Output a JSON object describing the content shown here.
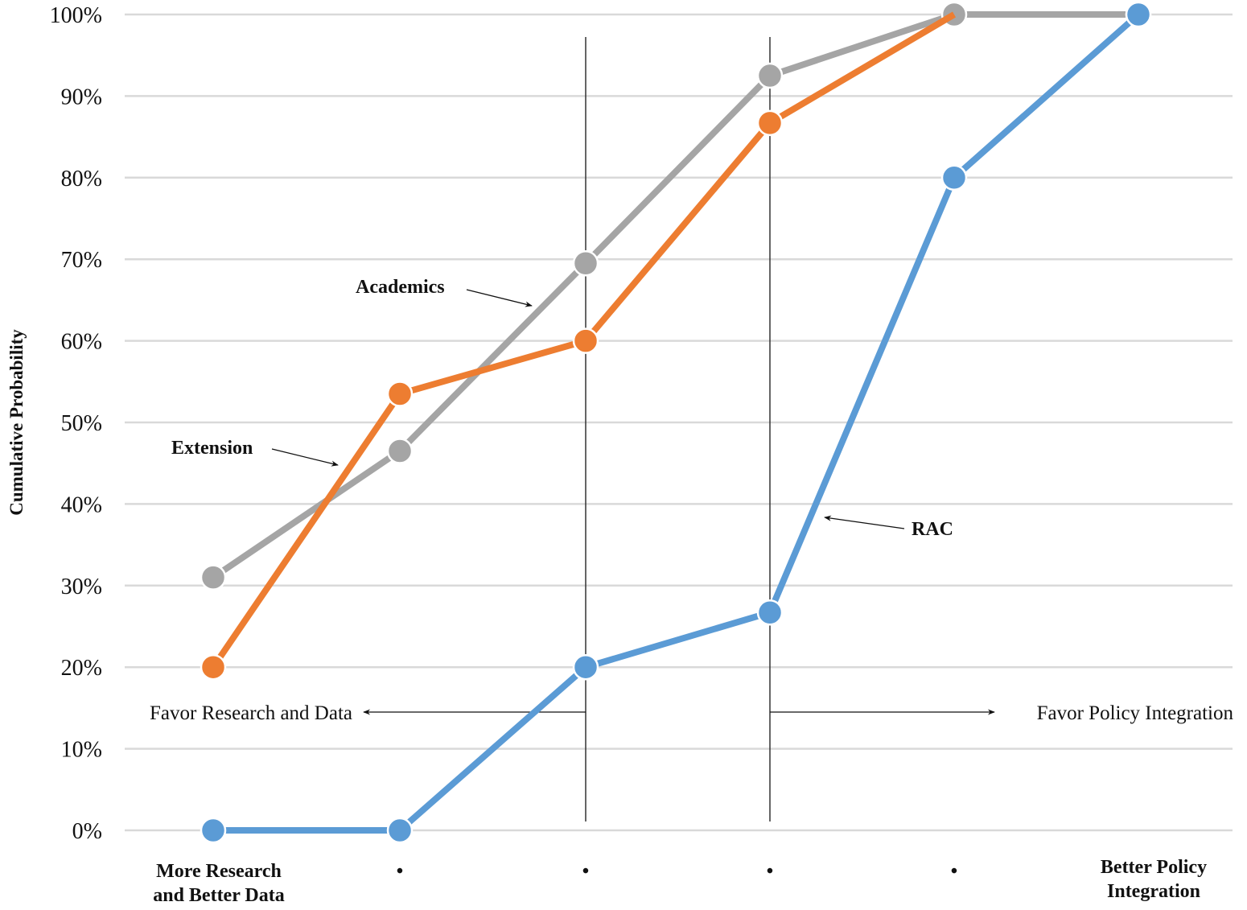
{
  "chart_data": {
    "type": "line",
    "title": "",
    "xlabel": "",
    "ylabel": "Cumulative Probability",
    "ylim": [
      0,
      100
    ],
    "yticks": [
      "0%",
      "10%",
      "20%",
      "30%",
      "40%",
      "50%",
      "60%",
      "70%",
      "80%",
      "90%",
      "100%"
    ],
    "grid": true,
    "categories": [
      "More Research and Better Data",
      "•",
      "•",
      "•",
      "•",
      "Better Policy Integration"
    ],
    "category_label_lines": [
      [
        "More Research",
        "and Better Data"
      ],
      [
        "•"
      ],
      [
        "•"
      ],
      [
        "•"
      ],
      [
        "•"
      ],
      [
        "Better Policy",
        "Integration"
      ]
    ],
    "series": [
      {
        "name": "Academics",
        "color": "#a5a5a5",
        "values": [
          31,
          46.5,
          69.5,
          92.5,
          100,
          100
        ]
      },
      {
        "name": "Extension",
        "color": "#ed7d31",
        "values": [
          20,
          53.5,
          60,
          86.7,
          100,
          null
        ]
      },
      {
        "name": "RAC",
        "color": "#5b9bd5",
        "values": [
          0,
          0,
          20,
          26.7,
          80,
          100
        ]
      }
    ],
    "annotations": [
      {
        "text": "Academics",
        "series": "Academics",
        "type": "arrow-label"
      },
      {
        "text": "Extension",
        "series": "Extension",
        "type": "arrow-label"
      },
      {
        "text": "RAC",
        "series": "RAC",
        "type": "arrow-label"
      },
      {
        "text": "Favor Research and Data",
        "direction": "left",
        "boundary_category_index": 2
      },
      {
        "text": "Favor Policy Integration",
        "direction": "right",
        "boundary_category_index": 3
      }
    ],
    "vertical_lines_at_category_index": [
      2,
      3
    ],
    "legend": "none (inline labels)"
  }
}
